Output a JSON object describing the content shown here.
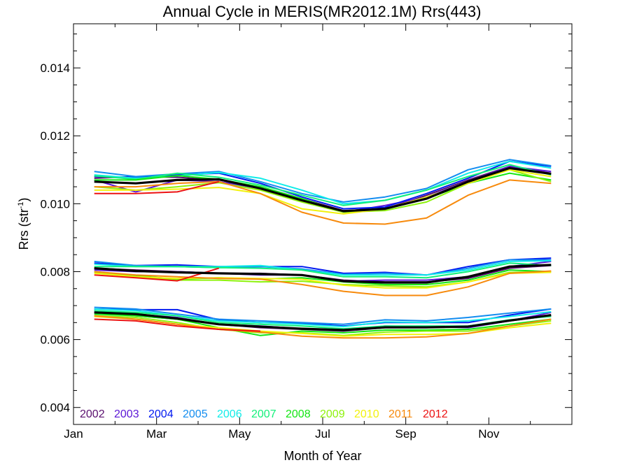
{
  "chart_data": {
    "type": "line",
    "title": "Annual Cycle in MERIS(MR2012.1M) Rrs(443)",
    "xlabel": "Month of Year",
    "ylabel_main": "Rrs (str",
    "ylabel_sup": "-1",
    "ylabel_close": ")",
    "xlim": [
      0,
      12
    ],
    "ylim": [
      0.0035,
      0.0153
    ],
    "x_ticks": [
      {
        "label": "Jan",
        "value": 0
      },
      {
        "label": "Mar",
        "value": 2
      },
      {
        "label": "May",
        "value": 4
      },
      {
        "label": "Jul",
        "value": 6
      },
      {
        "label": "Sep",
        "value": 8
      },
      {
        "label": "Nov",
        "value": 10
      }
    ],
    "y_ticks": [
      {
        "label": "0.004",
        "value": 0.004
      },
      {
        "label": "0.006",
        "value": 0.006
      },
      {
        "label": "0.008",
        "value": 0.008
      },
      {
        "label": "0.010",
        "value": 0.01
      },
      {
        "label": "0.012",
        "value": 0.012
      },
      {
        "label": "0.014",
        "value": 0.014
      }
    ],
    "legend_position": "bottom-left",
    "x": [
      0.5,
      1.5,
      2.5,
      3.5,
      4.5,
      5.5,
      6.5,
      7.5,
      8.5,
      9.5,
      10.5,
      11.5
    ],
    "series": [
      {
        "name": "2002",
        "color": "#5a0f6e",
        "group": "upper",
        "values": [
          0.01075,
          0.0108,
          0.01078,
          0.0107,
          0.0105,
          0.01015,
          0.0098,
          0.00985,
          0.01025,
          0.0107,
          0.0111,
          0.0109
        ]
      },
      {
        "name": "2003",
        "color": "#5b16d6",
        "group": "upper",
        "values": [
          0.0107,
          0.01035,
          0.0107,
          0.01065,
          0.01045,
          0.0101,
          0.00975,
          0.00995,
          0.0102,
          0.01065,
          0.0111,
          0.01095
        ]
      },
      {
        "name": "2004",
        "color": "#0018f0",
        "group": "upper",
        "values": [
          0.0108,
          0.01078,
          0.01085,
          0.0109,
          0.0106,
          0.0102,
          0.00985,
          0.0099,
          0.0103,
          0.01075,
          0.01125,
          0.0111
        ]
      },
      {
        "name": "2005",
        "color": "#138df0",
        "group": "upper",
        "values": [
          0.01095,
          0.0108,
          0.01088,
          0.01095,
          0.01065,
          0.0103,
          0.01005,
          0.0102,
          0.01045,
          0.011,
          0.0113,
          0.01112
        ]
      },
      {
        "name": "2006",
        "color": "#10ece8",
        "group": "upper",
        "values": [
          0.01085,
          0.01075,
          0.01082,
          0.01092,
          0.01075,
          0.0104,
          0.01,
          0.0101,
          0.0104,
          0.0109,
          0.01125,
          0.01105
        ]
      },
      {
        "name": "2007",
        "color": "#13f07a",
        "group": "upper",
        "values": [
          0.01082,
          0.01072,
          0.0109,
          0.01078,
          0.01055,
          0.01025,
          0.00995,
          0.0101,
          0.0104,
          0.0108,
          0.01115,
          0.01085
        ]
      },
      {
        "name": "2008",
        "color": "#12e612",
        "group": "upper",
        "values": [
          0.0107,
          0.0107,
          0.01083,
          0.01072,
          0.0105,
          0.01015,
          0.00975,
          0.00985,
          0.01015,
          0.0106,
          0.0109,
          0.0107
        ]
      },
      {
        "name": "2009",
        "color": "#8ef20c",
        "group": "upper",
        "values": [
          0.0105,
          0.0104,
          0.0105,
          0.01062,
          0.0104,
          0.01005,
          0.00975,
          0.0098,
          0.01005,
          0.0106,
          0.011,
          0.01065
        ]
      },
      {
        "name": "2010",
        "color": "#f2f20c",
        "group": "upper",
        "values": [
          0.0104,
          0.0104,
          0.01043,
          0.01048,
          0.0103,
          0.00985,
          0.0097,
          0.00985,
          0.0102,
          0.0106,
          0.011,
          0.0108
        ]
      },
      {
        "name": "2011",
        "color": "#f78a0c",
        "group": "upper",
        "values": [
          0.0105,
          0.0105,
          0.0106,
          0.01065,
          0.0103,
          0.00975,
          0.00943,
          0.0094,
          0.00958,
          0.01025,
          0.0107,
          0.0106
        ]
      },
      {
        "name": "2012",
        "color": "#ec1212",
        "group": "upper",
        "values": [
          0.0103,
          0.0103,
          0.01035,
          0.01065,
          null,
          null,
          null,
          null,
          null,
          null,
          null,
          null
        ]
      },
      {
        "name": "2002",
        "color": "#5a0f6e",
        "group": "mid",
        "values": [
          0.0081,
          0.00805,
          0.008,
          0.00795,
          0.00795,
          0.0079,
          0.00775,
          0.0077,
          0.0077,
          0.0078,
          0.0081,
          0.00818
        ]
      },
      {
        "name": "2003",
        "color": "#5b16d6",
        "group": "mid",
        "values": [
          0.00805,
          0.008,
          0.008,
          0.00795,
          0.0079,
          0.0079,
          0.00772,
          0.00775,
          0.00775,
          0.00785,
          0.00815,
          0.0083
        ]
      },
      {
        "name": "2004",
        "color": "#0018f0",
        "group": "mid",
        "values": [
          0.00825,
          0.00818,
          0.0082,
          0.00815,
          0.00815,
          0.00815,
          0.00795,
          0.00798,
          0.0079,
          0.00815,
          0.00835,
          0.0084
        ]
      },
      {
        "name": "2005",
        "color": "#138df0",
        "group": "mid",
        "values": [
          0.0083,
          0.00818,
          0.00815,
          0.00812,
          0.00815,
          0.00808,
          0.00792,
          0.00795,
          0.0079,
          0.0081,
          0.00835,
          0.00835
        ]
      },
      {
        "name": "2006",
        "color": "#10ece8",
        "group": "mid",
        "values": [
          0.00822,
          0.00815,
          0.00815,
          0.00815,
          0.00818,
          0.00805,
          0.0079,
          0.0079,
          0.0079,
          0.00805,
          0.0083,
          0.00832
        ]
      },
      {
        "name": "2007",
        "color": "#13f07a",
        "group": "mid",
        "values": [
          0.00815,
          0.00815,
          0.00815,
          0.00812,
          0.0081,
          0.00805,
          0.00785,
          0.00785,
          0.00782,
          0.008,
          0.00825,
          0.00818
        ]
      },
      {
        "name": "2008",
        "color": "#12e612",
        "group": "mid",
        "values": [
          0.008,
          0.00788,
          0.00778,
          0.00782,
          0.00778,
          0.00782,
          0.0077,
          0.00762,
          0.00762,
          0.00775,
          0.00805,
          0.008
        ]
      },
      {
        "name": "2009",
        "color": "#8ef20c",
        "group": "mid",
        "values": [
          0.00798,
          0.00785,
          0.00775,
          0.00775,
          0.0077,
          0.00772,
          0.00762,
          0.00758,
          0.00755,
          0.0077,
          0.00798,
          0.008
        ]
      },
      {
        "name": "2010",
        "color": "#f2f20c",
        "group": "mid",
        "values": [
          0.00795,
          0.00785,
          0.0078,
          0.00782,
          0.0078,
          0.00778,
          0.0076,
          0.00752,
          0.00752,
          0.0077,
          0.00795,
          0.00798
        ]
      },
      {
        "name": "2011",
        "color": "#f78a0c",
        "group": "mid",
        "values": [
          0.008,
          0.0079,
          0.00785,
          0.0078,
          0.00778,
          0.00762,
          0.00742,
          0.0073,
          0.0073,
          0.00755,
          0.00795,
          0.00802
        ]
      },
      {
        "name": "2012",
        "color": "#ec1212",
        "group": "mid",
        "values": [
          0.0079,
          0.00782,
          0.00773,
          0.0081,
          null,
          null,
          null,
          null,
          null,
          null,
          null,
          null
        ]
      },
      {
        "name": "2002",
        "color": "#5a0f6e",
        "group": "lower",
        "values": [
          0.0068,
          0.0067,
          0.0066,
          0.00645,
          0.00635,
          0.0063,
          0.00625,
          0.00635,
          0.00635,
          0.0064,
          0.00655,
          0.0067
        ]
      },
      {
        "name": "2003",
        "color": "#5b16d6",
        "group": "lower",
        "values": [
          0.00685,
          0.00675,
          0.00665,
          0.00645,
          0.0064,
          0.00632,
          0.00628,
          0.0064,
          0.00638,
          0.00635,
          0.00655,
          0.0068
        ]
      },
      {
        "name": "2004",
        "color": "#0018f0",
        "group": "lower",
        "values": [
          0.0069,
          0.00688,
          0.00688,
          0.00658,
          0.0065,
          0.00648,
          0.0064,
          0.0065,
          0.0065,
          0.0065,
          0.00672,
          0.0069
        ]
      },
      {
        "name": "2005",
        "color": "#138df0",
        "group": "lower",
        "values": [
          0.00695,
          0.0069,
          0.00675,
          0.0066,
          0.00655,
          0.0065,
          0.00645,
          0.00658,
          0.00655,
          0.00665,
          0.00678,
          0.0069
        ]
      },
      {
        "name": "2006",
        "color": "#10ece8",
        "group": "lower",
        "values": [
          0.0069,
          0.00685,
          0.0067,
          0.00655,
          0.0065,
          0.00645,
          0.00638,
          0.00652,
          0.0065,
          0.00655,
          0.00668,
          0.00682
        ]
      },
      {
        "name": "2007",
        "color": "#13f07a",
        "group": "lower",
        "values": [
          0.00685,
          0.0068,
          0.0067,
          0.0065,
          0.00645,
          0.0064,
          0.00632,
          0.0064,
          0.0064,
          0.0064,
          0.00658,
          0.00668
        ]
      },
      {
        "name": "2008",
        "color": "#12e612",
        "group": "lower",
        "values": [
          0.00675,
          0.0067,
          0.0066,
          0.00635,
          0.00612,
          0.00625,
          0.0062,
          0.00628,
          0.00628,
          0.0063,
          0.00645,
          0.0066
        ]
      },
      {
        "name": "2009",
        "color": "#8ef20c",
        "group": "lower",
        "values": [
          0.0067,
          0.00665,
          0.0065,
          0.0063,
          0.0062,
          0.0062,
          0.00612,
          0.00622,
          0.00625,
          0.00625,
          0.0064,
          0.00655
        ]
      },
      {
        "name": "2010",
        "color": "#f2f20c",
        "group": "lower",
        "values": [
          0.00668,
          0.0066,
          0.00645,
          0.00635,
          0.00625,
          0.00618,
          0.0061,
          0.00615,
          0.00615,
          0.00618,
          0.00635,
          0.00648
        ]
      },
      {
        "name": "2011",
        "color": "#f78a0c",
        "group": "lower",
        "values": [
          0.0067,
          0.0066,
          0.00645,
          0.0063,
          0.00622,
          0.0061,
          0.00605,
          0.00605,
          0.00608,
          0.00618,
          0.0064,
          0.0066
        ]
      },
      {
        "name": "2012",
        "color": "#ec1212",
        "group": "lower",
        "values": [
          0.0066,
          0.00655,
          0.0064,
          0.0063,
          0.00625,
          null,
          null,
          null,
          null,
          null,
          null,
          null
        ]
      }
    ],
    "mean_series": [
      {
        "color": "#000000",
        "values": [
          0.01065,
          0.0106,
          0.0107,
          0.01072,
          0.01045,
          0.0101,
          0.00978,
          0.00985,
          0.01015,
          0.01065,
          0.01105,
          0.01088
        ]
      },
      {
        "color": "#000000",
        "values": [
          0.0081,
          0.00802,
          0.00798,
          0.00795,
          0.00793,
          0.0079,
          0.00772,
          0.00768,
          0.00768,
          0.00785,
          0.00815,
          0.0082
        ]
      },
      {
        "color": "#000000",
        "values": [
          0.0068,
          0.00675,
          0.00662,
          0.00645,
          0.00638,
          0.00632,
          0.00628,
          0.00636,
          0.00636,
          0.00638,
          0.00656,
          0.00672
        ]
      }
    ],
    "legend": [
      {
        "label": "2002",
        "color": "#5a0f6e"
      },
      {
        "label": "2003",
        "color": "#5b16d6"
      },
      {
        "label": "2004",
        "color": "#0018f0"
      },
      {
        "label": "2005",
        "color": "#138df0"
      },
      {
        "label": "2006",
        "color": "#10ece8"
      },
      {
        "label": "2007",
        "color": "#13f07a"
      },
      {
        "label": "2008",
        "color": "#12e612"
      },
      {
        "label": "2009",
        "color": "#8ef20c"
      },
      {
        "label": "2010",
        "color": "#f2f20c"
      },
      {
        "label": "2011",
        "color": "#f78a0c"
      },
      {
        "label": "2012",
        "color": "#ec1212"
      }
    ]
  }
}
